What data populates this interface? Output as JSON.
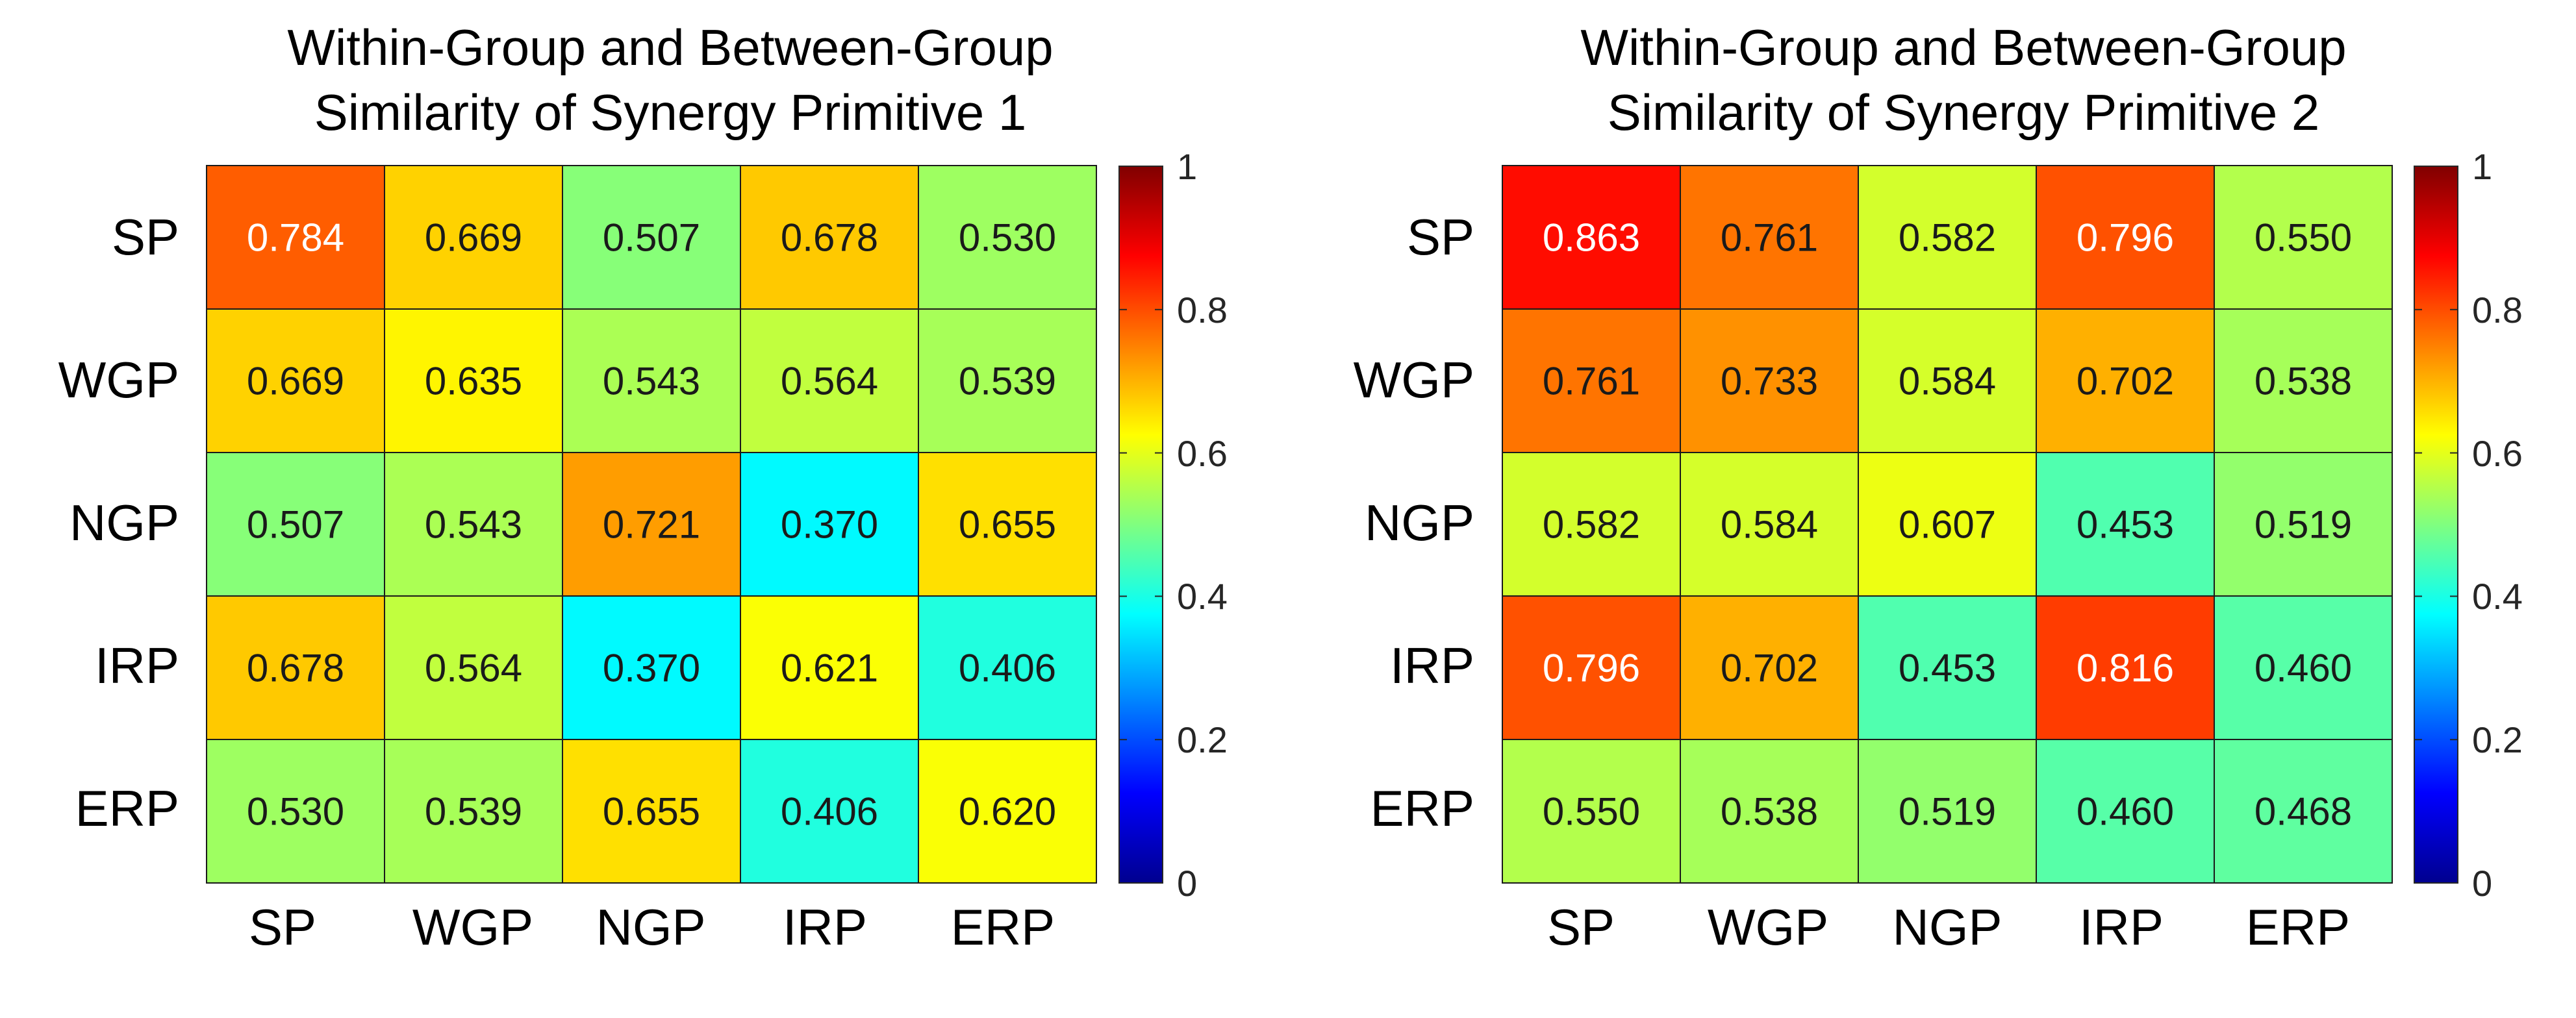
{
  "chart_data": [
    {
      "type": "heatmap",
      "title": [
        "Within-Group and Between-Group",
        "Similarity of Synergy Primitive 1"
      ],
      "x_labels": [
        "SP",
        "WGP",
        "NGP",
        "IRP",
        "ERP"
      ],
      "y_labels": [
        "SP",
        "WGP",
        "NGP",
        "IRP",
        "ERP"
      ],
      "values": [
        [
          0.784,
          0.669,
          0.507,
          0.678,
          0.53
        ],
        [
          0.669,
          0.635,
          0.543,
          0.564,
          0.539
        ],
        [
          0.507,
          0.543,
          0.721,
          0.37,
          0.655
        ],
        [
          0.678,
          0.564,
          0.37,
          0.621,
          0.406
        ],
        [
          0.53,
          0.539,
          0.655,
          0.406,
          0.62
        ]
      ],
      "colorbar": {
        "min": 0,
        "max": 1,
        "ticks": [
          "0",
          "0.2",
          "0.4",
          "0.6",
          "0.8",
          "1"
        ],
        "colormap": "jet"
      }
    },
    {
      "type": "heatmap",
      "title": [
        "Within-Group and Between-Group",
        "Similarity of Synergy Primitive 2"
      ],
      "x_labels": [
        "SP",
        "WGP",
        "NGP",
        "IRP",
        "ERP"
      ],
      "y_labels": [
        "SP",
        "WGP",
        "NGP",
        "IRP",
        "ERP"
      ],
      "values": [
        [
          0.863,
          0.761,
          0.582,
          0.796,
          0.55
        ],
        [
          0.761,
          0.733,
          0.584,
          0.702,
          0.538
        ],
        [
          0.582,
          0.584,
          0.607,
          0.453,
          0.519
        ],
        [
          0.796,
          0.702,
          0.453,
          0.816,
          0.46
        ],
        [
          0.55,
          0.538,
          0.519,
          0.46,
          0.468
        ]
      ],
      "colorbar": {
        "min": 0,
        "max": 1,
        "ticks": [
          "0",
          "0.2",
          "0.4",
          "0.6",
          "0.8",
          "1"
        ],
        "colormap": "jet"
      }
    }
  ]
}
